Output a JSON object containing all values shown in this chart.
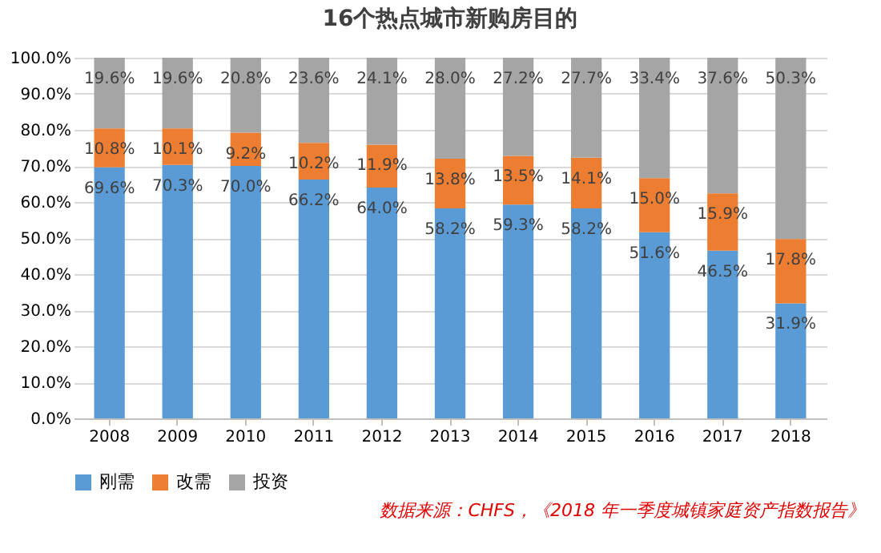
{
  "chart_data": {
    "type": "bar",
    "title": "16个热点城市新购房目的",
    "stacked": true,
    "grid": "y",
    "legend": "bottom",
    "categories": [
      "2008",
      "2009",
      "2010",
      "2011",
      "2012",
      "2013",
      "2014",
      "2015",
      "2016",
      "2017",
      "2018"
    ],
    "ylim": [
      0,
      100
    ],
    "yticks": [
      {
        "value": 0,
        "label": "0.0%"
      },
      {
        "value": 10,
        "label": "10.0%"
      },
      {
        "value": 20,
        "label": "20.0%"
      },
      {
        "value": 30,
        "label": "30.0%"
      },
      {
        "value": 40,
        "label": "40.0%"
      },
      {
        "value": 50,
        "label": "50.0%"
      },
      {
        "value": 60,
        "label": "60.0%"
      },
      {
        "value": 70,
        "label": "70.0%"
      },
      {
        "value": 80,
        "label": "80.0%"
      },
      {
        "value": 90,
        "label": "90.0%"
      },
      {
        "value": 100,
        "label": "100.0%"
      }
    ],
    "series": [
      {
        "name": "刚需",
        "color": "#5b9bd5",
        "values": [
          69.6,
          70.3,
          70.0,
          66.2,
          64.0,
          58.2,
          59.3,
          58.2,
          51.6,
          46.5,
          31.9
        ],
        "value_labels": [
          "69.6%",
          "70.3%",
          "70.0%",
          "66.2%",
          "64.0%",
          "58.2%",
          "59.3%",
          "58.2%",
          "51.6%",
          "46.5%",
          "31.9%"
        ]
      },
      {
        "name": "改需",
        "color": "#ed7d31",
        "values": [
          10.8,
          10.1,
          9.2,
          10.2,
          11.9,
          13.8,
          13.5,
          14.1,
          15.0,
          15.9,
          17.8
        ],
        "value_labels": [
          "10.8%",
          "10.1%",
          "9.2%",
          "10.2%",
          "11.9%",
          "13.8%",
          "13.5%",
          "14.1%",
          "15.0%",
          "15.9%",
          "17.8%"
        ]
      },
      {
        "name": "投资",
        "color": "#a5a5a5",
        "values": [
          19.6,
          19.6,
          20.8,
          23.6,
          24.1,
          28.0,
          27.2,
          27.7,
          33.4,
          37.6,
          50.3
        ],
        "value_labels": [
          "19.6%",
          "19.6%",
          "20.8%",
          "23.6%",
          "24.1%",
          "28.0%",
          "27.2%",
          "27.7%",
          "33.4%",
          "37.6%",
          "50.3%"
        ]
      }
    ],
    "annotations": [
      "数据来源：CHFS，《2018 年一季度城镇家庭资产指数报告》"
    ]
  }
}
